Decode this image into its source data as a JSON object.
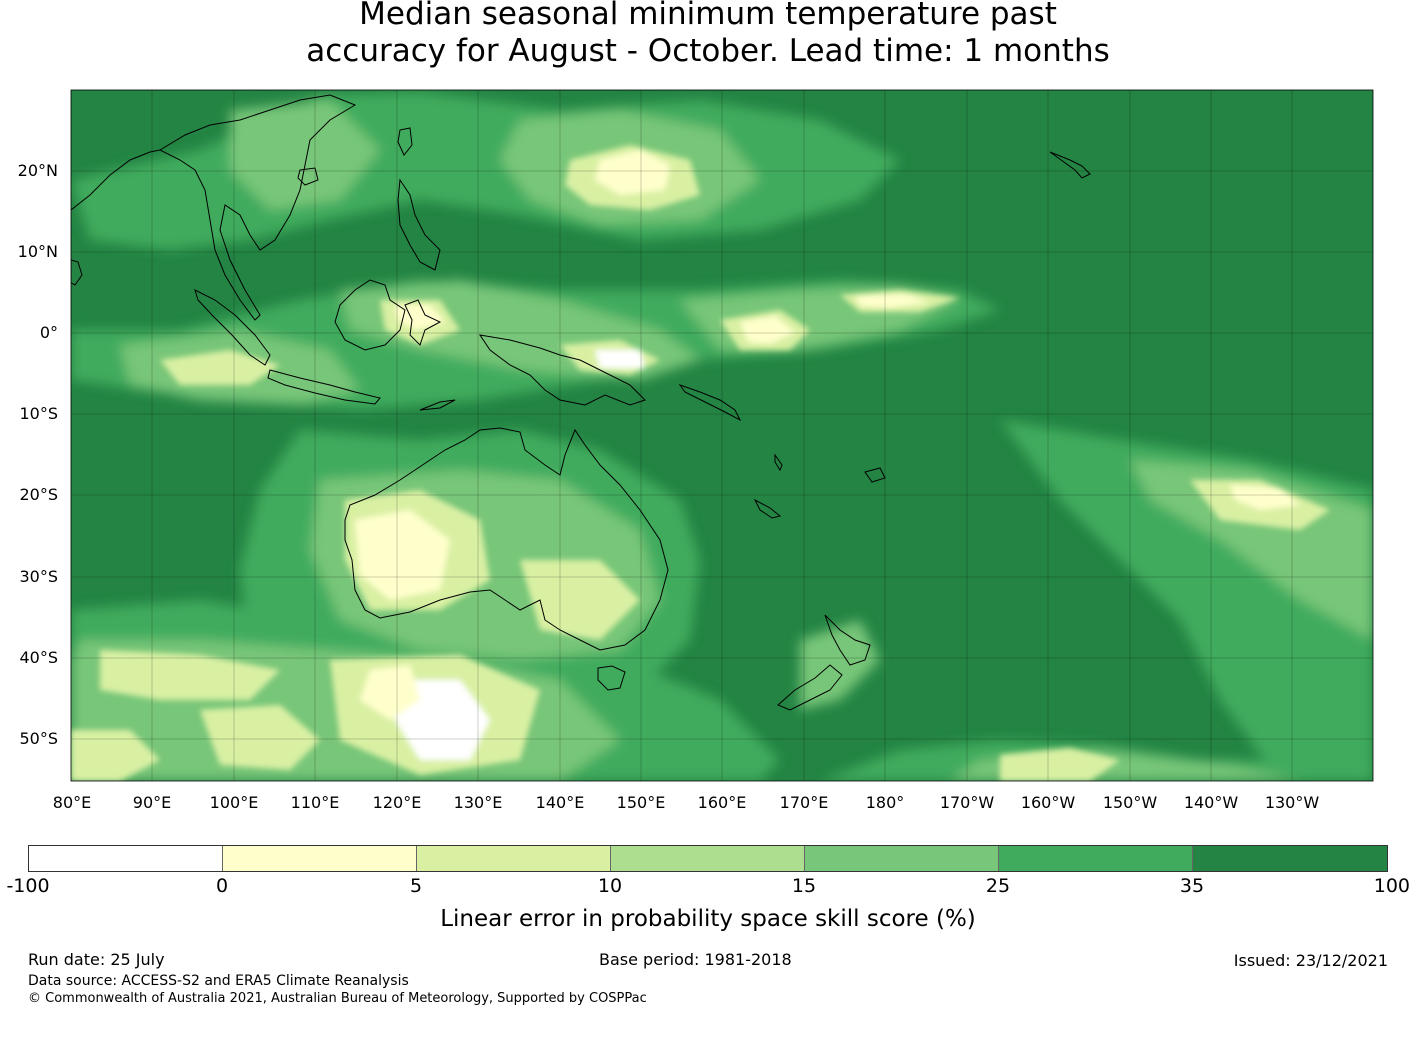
{
  "title": {
    "line1": "Median seasonal minimum temperature past",
    "line2": "accuracy for August - October. Lead time: 1 months"
  },
  "map": {
    "lat_labels": [
      "20°N",
      "10°N",
      "0°",
      "10°S",
      "20°S",
      "30°S",
      "40°S",
      "50°S"
    ],
    "lon_labels": [
      "80°E",
      "90°E",
      "100°E",
      "110°E",
      "120°E",
      "130°E",
      "140°E",
      "150°E",
      "160°E",
      "170°E",
      "180°",
      "170°W",
      "160°W",
      "150°W",
      "140°W",
      "130°W"
    ],
    "extent": {
      "lon_min": 80,
      "lon_max": 240,
      "lat_min": -55,
      "lat_max": 30
    },
    "background_class": "35-100"
  },
  "colorbar": {
    "ticks": [
      "-100",
      "0",
      "5",
      "10",
      "15",
      "25",
      "35",
      "100"
    ],
    "colors": [
      "#ffffff",
      "#ffffcc",
      "#d9f0a3",
      "#addd8e",
      "#78c679",
      "#41ab5d",
      "#238443"
    ],
    "label": "Linear error in probability space skill score (%)"
  },
  "footer": {
    "run_date": "Run date: 25 July",
    "base_period": "Base period: 1981-2018",
    "issued": "Issued: 23/12/2021",
    "data_source": "Data source: ACCESS-S2 and ERA5 Climate Reanalysis",
    "copyright": "© Commonwealth of Australia 2021, Australian Bureau of Meteorology, Supported by COSPPac"
  }
}
